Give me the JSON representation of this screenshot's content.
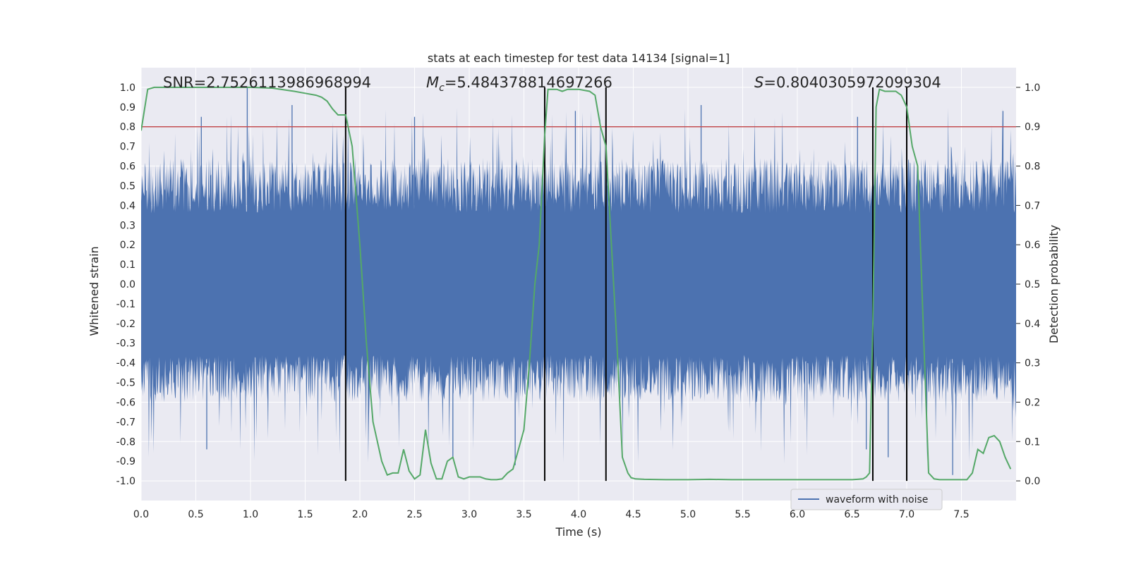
{
  "chart_data": {
    "type": "line",
    "title": "stats at each timestep for test data 14134 [signal=1]",
    "xlabel": "Time (s)",
    "ylabel": "Whitened strain",
    "y2label": "Detection probability",
    "xlim": [
      0.0,
      8.0
    ],
    "ylim": [
      -1.1,
      1.1
    ],
    "y2lim": [
      -0.05,
      1.05
    ],
    "xticks": [
      0.0,
      0.5,
      1.0,
      1.5,
      2.0,
      2.5,
      3.0,
      3.5,
      4.0,
      4.5,
      5.0,
      5.5,
      6.0,
      6.5,
      7.0,
      7.5
    ],
    "yticks": [
      -1.0,
      -0.9,
      -0.8,
      -0.7,
      -0.6,
      -0.5,
      -0.4,
      -0.3,
      -0.2,
      -0.1,
      0.0,
      0.1,
      0.2,
      0.3,
      0.4,
      0.5,
      0.6,
      0.7,
      0.8,
      0.9,
      1.0
    ],
    "y2ticks": [
      0.0,
      0.1,
      0.2,
      0.3,
      0.4,
      0.5,
      0.6,
      0.7,
      0.8,
      0.9,
      1.0
    ],
    "annotations": {
      "snr": "SNR=2.7526113986968994",
      "mc_symbol": "M",
      "mc_sub": "c",
      "mc_value": "=5.484378814697266",
      "s_symbol": "S",
      "s_value": "=0.8040305972099304"
    },
    "threshold": {
      "value": 0.8,
      "color": "#c44e52"
    },
    "vertical_lines": [
      1.87,
      3.69,
      4.25,
      6.69,
      7.0
    ],
    "legend": {
      "label": "waveform with noise",
      "placement": "lower-right"
    },
    "waveform": {
      "name": "waveform with noise",
      "color": "#4c72b0",
      "x_range": [
        0.0,
        8.0
      ],
      "samples": 1600,
      "envelope_core": 0.36,
      "max_peak": 1.0,
      "min_trough": -0.97
    },
    "series": [
      {
        "name": "detection probability",
        "axis": "right",
        "color": "#55a868",
        "x": [
          0.0,
          0.06,
          0.12,
          0.2,
          0.4,
          0.6,
          0.8,
          1.0,
          1.2,
          1.4,
          1.5,
          1.6,
          1.65,
          1.7,
          1.75,
          1.8,
          1.87,
          1.93,
          2.0,
          2.06,
          2.12,
          2.2,
          2.25,
          2.3,
          2.35,
          2.4,
          2.45,
          2.5,
          2.55,
          2.6,
          2.65,
          2.7,
          2.75,
          2.8,
          2.85,
          2.9,
          2.95,
          3.0,
          3.05,
          3.1,
          3.15,
          3.2,
          3.25,
          3.3,
          3.35,
          3.4,
          3.45,
          3.5,
          3.55,
          3.6,
          3.64,
          3.69,
          3.72,
          3.76,
          3.8,
          3.85,
          3.9,
          4.0,
          4.1,
          4.15,
          4.2,
          4.25,
          4.3,
          4.35,
          4.4,
          4.45,
          4.48,
          4.52,
          4.6,
          4.8,
          5.0,
          5.2,
          5.4,
          5.6,
          5.8,
          6.0,
          6.2,
          6.4,
          6.5,
          6.55,
          6.6,
          6.63,
          6.66,
          6.69,
          6.72,
          6.75,
          6.8,
          6.85,
          6.9,
          6.95,
          7.0,
          7.05,
          7.1,
          7.15,
          7.2,
          7.25,
          7.3,
          7.4,
          7.5,
          7.55,
          7.6,
          7.65,
          7.7,
          7.75,
          7.8,
          7.85,
          7.9,
          7.95
        ],
        "y": [
          0.89,
          0.995,
          1.0,
          1.0,
          1.0,
          1.0,
          1.0,
          1.0,
          0.998,
          0.99,
          0.985,
          0.98,
          0.975,
          0.965,
          0.945,
          0.93,
          0.93,
          0.85,
          0.6,
          0.35,
          0.15,
          0.05,
          0.015,
          0.02,
          0.02,
          0.08,
          0.025,
          0.005,
          0.015,
          0.13,
          0.045,
          0.005,
          0.005,
          0.05,
          0.06,
          0.01,
          0.005,
          0.01,
          0.01,
          0.01,
          0.005,
          0.003,
          0.003,
          0.005,
          0.02,
          0.03,
          0.08,
          0.13,
          0.3,
          0.5,
          0.6,
          0.88,
          0.995,
          0.995,
          0.995,
          0.99,
          0.995,
          0.995,
          0.99,
          0.98,
          0.9,
          0.85,
          0.6,
          0.35,
          0.06,
          0.02,
          0.008,
          0.005,
          0.004,
          0.003,
          0.003,
          0.004,
          0.003,
          0.003,
          0.003,
          0.003,
          0.003,
          0.003,
          0.003,
          0.004,
          0.005,
          0.01,
          0.02,
          0.4,
          0.95,
          0.995,
          0.99,
          0.99,
          0.99,
          0.98,
          0.95,
          0.85,
          0.8,
          0.4,
          0.02,
          0.005,
          0.003,
          0.003,
          0.003,
          0.003,
          0.02,
          0.08,
          0.07,
          0.11,
          0.115,
          0.1,
          0.06,
          0.03
        ]
      }
    ]
  }
}
